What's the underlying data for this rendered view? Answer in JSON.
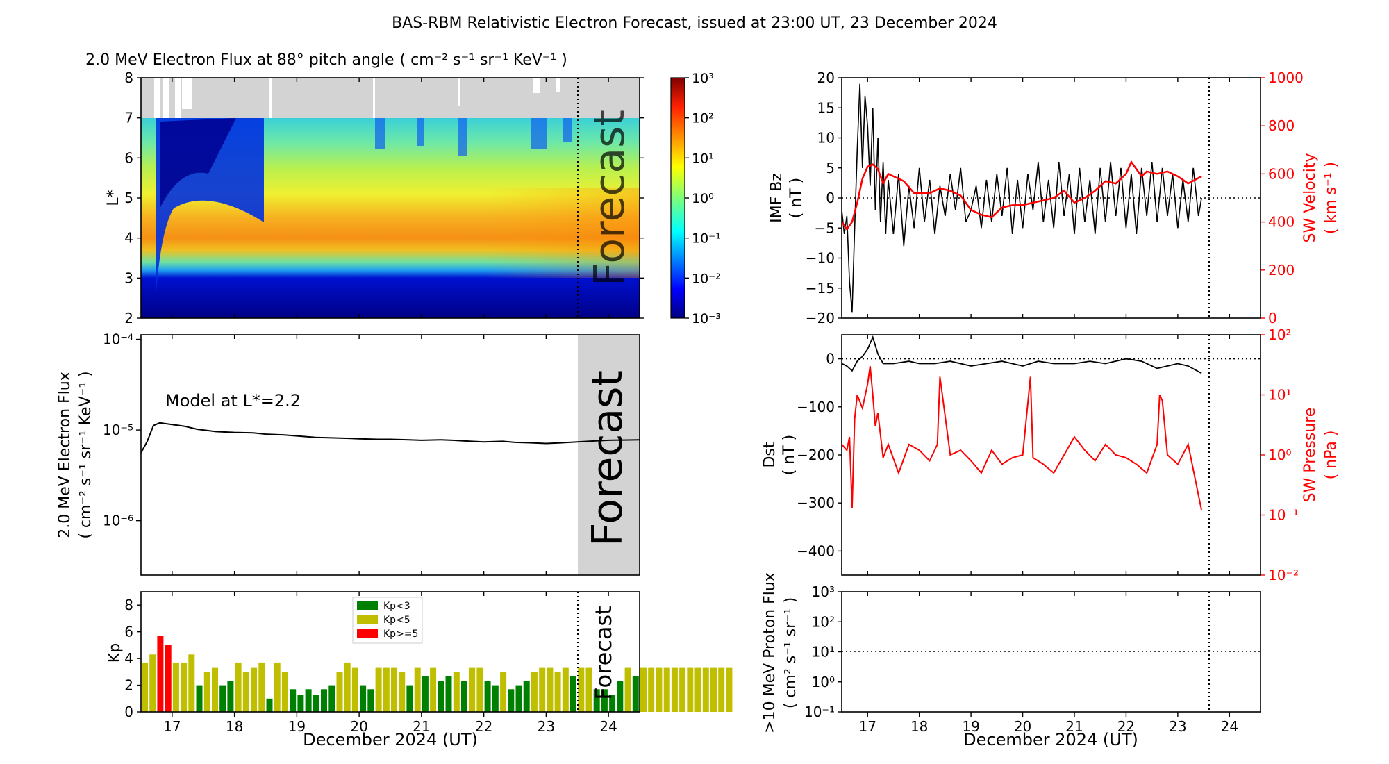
{
  "figure": {
    "title": "BAS-RBM Relativistic Electron Forecast, issued at 23:00 UT, 23 December 2024",
    "forecast_label": "Forecast",
    "xlabel": "December 2024 (UT)",
    "x_ticks": [
      "17",
      "18",
      "19",
      "20",
      "21",
      "22",
      "23",
      "24"
    ]
  },
  "chart_data": [
    {
      "id": "flux-map",
      "type": "heatmap",
      "title": "2.0 MeV Electron Flux at 88° pitch angle",
      "title_units": "( cm⁻² s⁻¹ sr⁻¹ KeV⁻¹ )",
      "ylabel": "L*",
      "xlim": [
        16.5,
        24.5
      ],
      "ylim": [
        2,
        8
      ],
      "y_ticks": [
        "2",
        "3",
        "4",
        "5",
        "6",
        "7",
        "8"
      ],
      "colorbar": {
        "ticks": [
          "10⁻³",
          "10⁻²",
          "10⁻¹",
          "10⁰",
          "10¹",
          "10²",
          "10³"
        ],
        "range_log10": [
          -3,
          3
        ],
        "colormap": "jet"
      },
      "no_data_above_L": 7,
      "forecast_start": 23.46
    },
    {
      "id": "flux-line",
      "type": "line",
      "ylabel_line1": "2.0 MeV Electron Flux",
      "ylabel_line2": "( cm⁻² s⁻¹ sr⁻¹ KeV⁻¹ )",
      "annotation": "Model at L*=2.2",
      "y_scale": "log",
      "ylim_log10": [
        -6.6,
        -3.95
      ],
      "y_ticks": [
        "10⁻⁴",
        "10⁻⁵",
        "10⁻⁶"
      ],
      "x": [
        16.5,
        16.6,
        16.7,
        16.8,
        17.0,
        17.2,
        17.4,
        17.7,
        18.0,
        18.3,
        18.5,
        18.8,
        19.0,
        19.3,
        19.5,
        19.8,
        20.0,
        20.3,
        20.5,
        20.8,
        21.0,
        21.3,
        21.5,
        21.8,
        22.0,
        22.3,
        22.5,
        22.8,
        23.0,
        23.2,
        23.5,
        23.8,
        24.0,
        24.5
      ],
      "y": [
        5.6e-06,
        7.5e-06,
        1.12e-05,
        1.2e-05,
        1.15e-05,
        1.1e-05,
        1.02e-05,
        9.6e-06,
        9.4e-06,
        9.3e-06,
        9e-06,
        8.8e-06,
        8.6e-06,
        8.3e-06,
        8.2e-06,
        8.1e-06,
        8e-06,
        7.9e-06,
        7.9e-06,
        7.8e-06,
        7.7e-06,
        7.8e-06,
        7.7e-06,
        7.5e-06,
        7.4e-06,
        7.5e-06,
        7.3e-06,
        7.2e-06,
        7.1e-06,
        7.2e-06,
        7.4e-06,
        7.6e-06,
        7.7e-06,
        7.8e-06
      ],
      "forecast_start": 23.46
    },
    {
      "id": "kp-bars",
      "type": "bar",
      "ylabel": "Kp",
      "ylim": [
        0,
        9
      ],
      "y_ticks": [
        "0",
        "2",
        "4",
        "6",
        "8"
      ],
      "bar_width": 0.1,
      "legend": [
        {
          "label": "Kp<3",
          "color": "#008000"
        },
        {
          "label": "Kp<5",
          "color": "#bfbf00"
        },
        {
          "label": "Kp>=5",
          "color": "#ff0000"
        }
      ],
      "start": 16.5,
      "step": 0.125,
      "values": [
        3.7,
        4.3,
        5.7,
        5.0,
        3.7,
        3.7,
        4.3,
        2.0,
        3.0,
        3.3,
        2.0,
        2.3,
        3.7,
        3.0,
        3.3,
        3.7,
        1.0,
        3.7,
        3.0,
        1.7,
        1.3,
        1.7,
        1.3,
        1.7,
        2.0,
        3.0,
        3.7,
        3.3,
        2.0,
        1.7,
        3.3,
        3.3,
        3.3,
        3.0,
        2.0,
        3.3,
        2.7,
        3.3,
        2.3,
        2.7,
        3.0,
        2.3,
        3.3,
        3.3,
        2.3,
        2.0,
        3.0,
        1.7,
        2.0,
        2.3,
        3.0,
        3.3,
        3.3,
        3.0,
        3.3,
        2.7,
        3.3,
        3.3,
        1.7,
        1.7,
        1.3,
        2.3,
        3.3,
        2.7,
        3.3,
        3.3,
        3.3,
        3.3,
        3.3,
        3.3,
        3.3,
        3.3,
        3.3,
        3.3,
        3.3,
        3.3
      ],
      "forecast_start": 23.46
    },
    {
      "id": "solar-wind",
      "type": "line",
      "ylabel_left_line1": "IMF Bz",
      "ylabel_left_line2": "( nT )",
      "ylabel_right_line1": "SW Velocity",
      "ylabel_right_line2": "( km s⁻¹ )",
      "ylim_left": [
        -20,
        20
      ],
      "ylim_right": [
        0,
        1000
      ],
      "y_ticks_left": [
        "20",
        "15",
        "10",
        "5",
        "0",
        "−5",
        "−10",
        "−15",
        "−20"
      ],
      "y_ticks_right": [
        "1000",
        "800",
        "600",
        "400",
        "200",
        "0"
      ],
      "right_axis_color": "#ff0000",
      "series": [
        {
          "name": "IMF Bz",
          "color": "#000000",
          "x": [
            16.5,
            16.55,
            16.6,
            16.65,
            16.7,
            16.75,
            16.8,
            16.85,
            16.9,
            16.95,
            17.0,
            17.05,
            17.1,
            17.15,
            17.2,
            17.25,
            17.3,
            17.35,
            17.4,
            17.5,
            17.6,
            17.7,
            17.8,
            17.9,
            18.0,
            18.1,
            18.2,
            18.3,
            18.4,
            18.5,
            18.6,
            18.7,
            18.8,
            18.9,
            19.0,
            19.1,
            19.2,
            19.3,
            19.4,
            19.5,
            19.6,
            19.7,
            19.8,
            19.9,
            20.0,
            20.1,
            20.2,
            20.3,
            20.4,
            20.5,
            20.6,
            20.7,
            20.8,
            20.9,
            21.0,
            21.1,
            21.2,
            21.3,
            21.4,
            21.5,
            21.6,
            21.7,
            21.8,
            21.9,
            22.0,
            22.1,
            22.2,
            22.3,
            22.4,
            22.5,
            22.6,
            22.7,
            22.8,
            22.9,
            23.0,
            23.1,
            23.2,
            23.3,
            23.4,
            23.46
          ],
          "y": [
            -2,
            -6,
            -3,
            -14,
            -19,
            -5,
            8,
            19,
            5,
            17,
            12,
            2,
            15,
            -2,
            10,
            -4,
            6,
            -6,
            3,
            -6,
            4,
            -8,
            2,
            -5,
            5,
            -4,
            3,
            -6,
            2,
            -3,
            4,
            -2,
            5,
            -4,
            -2,
            2,
            -5,
            3,
            -4,
            4,
            -3,
            5,
            -6,
            3,
            -5,
            4,
            -2,
            6,
            -4,
            3,
            -5,
            6,
            -3,
            4,
            -6,
            5,
            -4,
            3,
            -6,
            5,
            -4,
            6,
            -3,
            5,
            -5,
            4,
            -6,
            5,
            -3,
            6,
            -4,
            5,
            -3,
            4,
            -5,
            3,
            -4,
            5,
            -3,
            0
          ]
        },
        {
          "name": "SW Velocity",
          "color": "#ff0000",
          "axis": "right",
          "x": [
            16.5,
            16.6,
            16.7,
            16.8,
            16.9,
            17.0,
            17.1,
            17.2,
            17.3,
            17.4,
            17.5,
            17.7,
            17.9,
            18.0,
            18.2,
            18.4,
            18.6,
            18.8,
            19.0,
            19.2,
            19.4,
            19.6,
            19.8,
            20.0,
            20.2,
            20.4,
            20.6,
            20.8,
            21.0,
            21.2,
            21.4,
            21.6,
            21.8,
            22.0,
            22.1,
            22.2,
            22.3,
            22.4,
            22.6,
            22.8,
            23.0,
            23.2,
            23.46
          ],
          "y": [
            400,
            370,
            400,
            480,
            580,
            630,
            640,
            620,
            560,
            600,
            590,
            570,
            520,
            520,
            520,
            540,
            530,
            510,
            450,
            430,
            420,
            460,
            470,
            470,
            480,
            490,
            500,
            530,
            480,
            500,
            530,
            570,
            560,
            600,
            650,
            620,
            590,
            610,
            600,
            610,
            590,
            560,
            590
          ]
        }
      ],
      "forecast_start": 23.46
    },
    {
      "id": "dst-pressure",
      "type": "line",
      "ylabel_left_line1": "Dst",
      "ylabel_left_line2": "( nT )",
      "ylabel_right_line1": "SW Pressure",
      "ylabel_right_line2": "( nPa )",
      "ylim_left": [
        -450,
        50
      ],
      "ylim_right_log10": [
        -2,
        2
      ],
      "y_ticks_left": [
        "0",
        "−100",
        "−200",
        "−300",
        "−400"
      ],
      "y_ticks_right": [
        "10²",
        "10¹",
        "10⁰",
        "10⁻¹",
        "10⁻²"
      ],
      "right_axis_color": "#ff0000",
      "series": [
        {
          "name": "Dst",
          "color": "#000000",
          "x": [
            16.5,
            16.6,
            16.7,
            16.8,
            16.9,
            17.0,
            17.1,
            17.2,
            17.3,
            17.5,
            17.8,
            18.0,
            18.3,
            18.6,
            19.0,
            19.3,
            19.6,
            20.0,
            20.3,
            20.6,
            21.0,
            21.3,
            21.6,
            22.0,
            22.3,
            22.6,
            23.0,
            23.2,
            23.46
          ],
          "y": [
            -10,
            -15,
            -25,
            -5,
            5,
            20,
            45,
            10,
            -10,
            -10,
            -5,
            -10,
            -10,
            -5,
            -15,
            -10,
            -5,
            -15,
            -5,
            -10,
            -10,
            -5,
            -10,
            0,
            -5,
            -20,
            -10,
            -15,
            -30
          ]
        },
        {
          "name": "SW Pressure",
          "color": "#ff0000",
          "axis": "right",
          "x": [
            16.5,
            16.6,
            16.65,
            16.7,
            16.75,
            16.8,
            16.9,
            17.0,
            17.05,
            17.1,
            17.15,
            17.2,
            17.3,
            17.4,
            17.6,
            17.8,
            18.0,
            18.2,
            18.35,
            18.4,
            18.6,
            18.8,
            19.0,
            19.2,
            19.4,
            19.6,
            19.8,
            20.0,
            20.15,
            20.2,
            20.4,
            20.6,
            20.8,
            21.0,
            21.2,
            21.4,
            21.6,
            21.8,
            22.0,
            22.2,
            22.4,
            22.6,
            22.65,
            22.7,
            22.8,
            23.0,
            23.2,
            23.46
          ],
          "y": [
            1.5,
            1.2,
            2.0,
            0.13,
            4.0,
            10.0,
            6.0,
            15.0,
            30.0,
            10.0,
            3.0,
            5.0,
            0.9,
            1.5,
            0.5,
            1.5,
            1.2,
            0.8,
            1.5,
            20.0,
            1.0,
            1.2,
            0.8,
            0.5,
            1.2,
            0.7,
            0.9,
            1.0,
            20.0,
            0.9,
            0.7,
            0.5,
            1.0,
            2.0,
            1.2,
            0.8,
            1.5,
            1.0,
            0.9,
            0.7,
            0.5,
            1.5,
            10.0,
            8.0,
            1.0,
            0.7,
            1.5,
            0.12
          ]
        }
      ],
      "forecast_start": 23.46
    },
    {
      "id": "proton-flux",
      "type": "line",
      "ylabel_line1": ">10 MeV Proton Flux",
      "ylabel_line2": "( cm² s⁻¹ sr⁻¹ )",
      "y_scale": "log",
      "ylim_log10": [
        -1,
        3
      ],
      "y_ticks": [
        "10³",
        "10²",
        "10¹",
        "10⁰",
        "10⁻¹"
      ],
      "threshold": 10,
      "forecast_start": 23.46
    }
  ]
}
